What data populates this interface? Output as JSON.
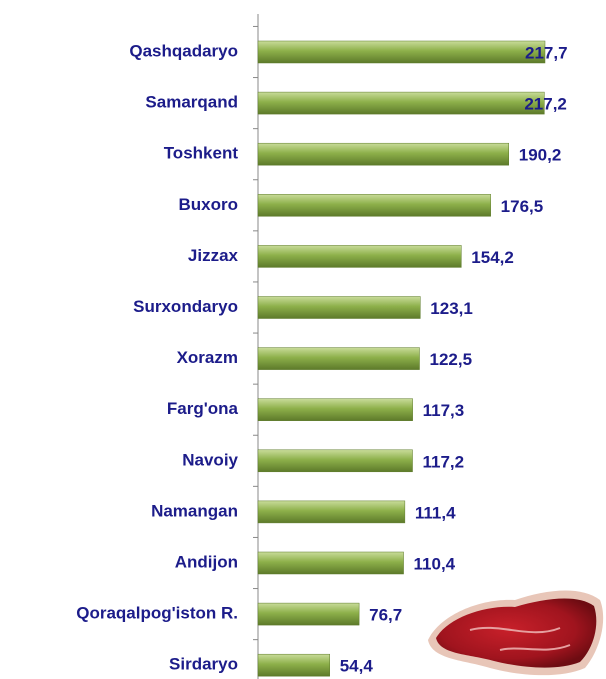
{
  "chart_data": {
    "type": "hbar",
    "categories": [
      "Qashqadaryo",
      "Samarqand",
      "Toshkent",
      "Buxoro",
      "Jizzax",
      "Surxondaryo",
      "Xorazm",
      "Farg'ona",
      "Navoiy",
      "Namangan",
      "Andijon",
      "Qoraqalpog'iston R.",
      "Sirdaryo"
    ],
    "values": [
      217.7,
      217.2,
      190.2,
      176.5,
      154.2,
      123.1,
      122.5,
      117.3,
      117.2,
      111.4,
      110.4,
      76.7,
      54.4
    ],
    "value_labels": [
      "217,7",
      "217,2",
      "190,2",
      "176,5",
      "154,2",
      "123,1",
      "122,5",
      "117,3",
      "117,2",
      "111,4",
      "110,4",
      "76,7",
      "54,4"
    ],
    "color": "#8db04a"
  }
}
